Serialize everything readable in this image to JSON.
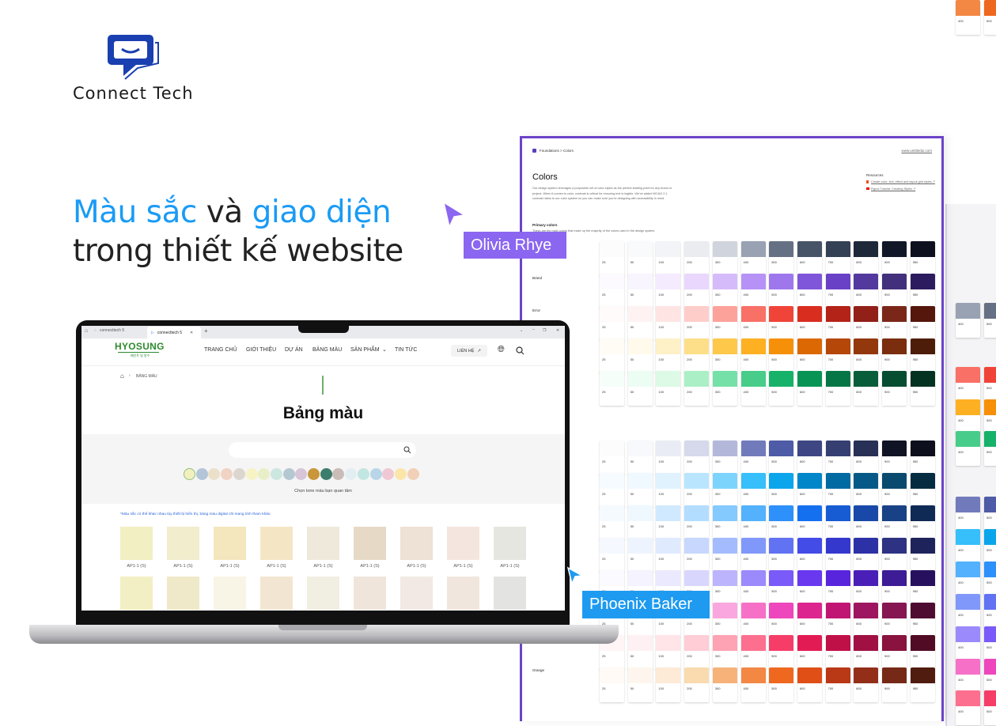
{
  "brand": {
    "name": "Connect Tech",
    "color": "#1a3fb0"
  },
  "headline": {
    "line1": [
      {
        "text": "Màu sắc",
        "accent": true
      },
      {
        "text": " và ",
        "accent": false
      },
      {
        "text": "giao diện",
        "accent": true
      }
    ],
    "line2": "trong thiết kế website",
    "accent_color": "#1a9bf5"
  },
  "cursors": [
    {
      "name": "Olivia Rhye",
      "color": "#8b66f0"
    },
    {
      "name": "Phoenix Baker",
      "color": "#1e9af0"
    }
  ],
  "browser": {
    "tabs": [
      {
        "label": "connecttech 5",
        "active": false
      },
      {
        "label": "connecttech 5",
        "active": true
      }
    ],
    "new_tab": "+"
  },
  "site": {
    "logo": "HYOSUNG",
    "logo_sub": "페인트 및 방수",
    "logo_color": "#2e8b2e",
    "nav": [
      "TRANG CHỦ",
      "GIỚI THIỆU",
      "DỰ ÁN",
      "BẢNG MÀU",
      "SẢN PHẨM",
      "TIN TỨC"
    ],
    "contact": "LIÊN HỆ",
    "breadcrumb": "BẢNG MÀU",
    "title": "Bảng màu",
    "search_placeholder": "",
    "tone_colors": [
      "#f3f0c0",
      "#b3c5d6",
      "#ebe1cb",
      "#f0d3c3",
      "#dbd6d0",
      "#f7f3c4",
      "#e8efc7",
      "#cce6e0",
      "#b4c8d1",
      "#d7c5d8",
      "#c9963b",
      "#3c7d6b",
      "#cabdb8",
      "#e3eef3",
      "#c2e6e2",
      "#b9d6e8",
      "#efc8d3",
      "#fce5a8",
      "#f2d0b8"
    ],
    "selected_tone": 0,
    "tone_hint": "Chọn tone màu bạn quan tâm",
    "note": "*Màu sắc có thể khác nhau tùy thiết bị hiển thị, bảng màu digital chỉ mang tính tham khảo",
    "swatches": [
      [
        {
          "code": "AP1-1 (S)",
          "color": "#f2efc3"
        },
        {
          "code": "AP1-1 (S)",
          "color": "#f1edcd"
        },
        {
          "code": "AP1-1 (S)",
          "color": "#f4e6bd"
        },
        {
          "code": "AP1-1 (S)",
          "color": "#f4e6c5"
        },
        {
          "code": "AP1-1 (S)",
          "color": "#efe9dc"
        },
        {
          "code": "AP1-1 (S)",
          "color": "#e6d9c6"
        },
        {
          "code": "AP1-1 (S)",
          "color": "#eee1d5"
        },
        {
          "code": "AP1-1 (S)",
          "color": "#f4e6de"
        },
        {
          "code": "AP1-1 (S)",
          "color": "#e6e6e1"
        }
      ],
      [
        {
          "color": "#f3efc4"
        },
        {
          "color": "#efe9c9"
        },
        {
          "color": "#f8f4e6"
        },
        {
          "color": "#f2e6d2"
        },
        {
          "color": "#f1eee2"
        },
        {
          "color": "#efe5db"
        },
        {
          "color": "#f2e9e4"
        },
        {
          "color": "#f1e6dd"
        },
        {
          "color": "#e3e3e1"
        }
      ]
    ]
  },
  "design_doc": {
    "breadcrumb": "Foundations > Colors",
    "url": "www.untitledui.com",
    "title": "Colors",
    "description": "Our design system leverages a purposeful set of color styles as the perfect starting point for any brand or project. When it comes to color, contrast is critical for ensuring text is legible. We've added WCAG 2.1 contrast ratios to our color system so you can make sure you're designing with accessibility in mind.",
    "resources_title": "Resources",
    "resources": [
      "Create color, text, effect and layout grid styles ↗",
      "Figma Tutorial: Creating Styles ↗"
    ],
    "primary_title": "Primary colors",
    "primary_desc": "These are the main colors that make up the majority of the colors used in the design system.",
    "section_labels": {
      "brand": "Brand",
      "error": "Error",
      "orange": "Orange"
    },
    "steps": [
      "25",
      "50",
      "100",
      "200",
      "300",
      "400",
      "500",
      "600",
      "700",
      "800",
      "900",
      "950"
    ],
    "primary_palettes": [
      [
        "#FCFCFD",
        "#F9FAFB",
        "#F2F4F7",
        "#EAECF0",
        "#D0D5DD",
        "#98A2B3",
        "#667085",
        "#475467",
        "#344054",
        "#1D2939",
        "#101828",
        "#0C111D"
      ],
      [
        "#FCFAFF",
        "#F9F5FF",
        "#F4EBFF",
        "#E9D7FE",
        "#D6BBFB",
        "#B692F6",
        "#9E77ED",
        "#7F56D9",
        "#6941C6",
        "#53389E",
        "#42307D",
        "#2C1C5F"
      ],
      [
        "#FFFBFA",
        "#FEF3F2",
        "#FEE4E2",
        "#FECDCA",
        "#FDA29B",
        "#F97066",
        "#F04438",
        "#D92D20",
        "#B42318",
        "#912018",
        "#7A271A",
        "#55160C"
      ],
      [
        "#FFFCF5",
        "#FFFAEB",
        "#FEF0C7",
        "#FEDF89",
        "#FEC84B",
        "#FDB022",
        "#F79009",
        "#DC6803",
        "#B54708",
        "#93370D",
        "#7A2E0E",
        "#4E1D09"
      ],
      [
        "#F6FEF9",
        "#ECFDF3",
        "#DCFAE6",
        "#ABEFC6",
        "#75E0A7",
        "#47CD89",
        "#17B26A",
        "#079455",
        "#067647",
        "#085D3A",
        "#074D31",
        "#053321"
      ]
    ],
    "secondary_palettes": [
      [
        "#FCFCFD",
        "#F8F9FC",
        "#EAECF5",
        "#D5D9EB",
        "#B3B8DB",
        "#717BBC",
        "#4E5BA6",
        "#3E4784",
        "#363F72",
        "#293056",
        "#101323",
        "#0D0F1C"
      ],
      [
        "#F5FBFF",
        "#F0F9FF",
        "#E0F2FE",
        "#B9E6FE",
        "#7CD4FD",
        "#36BFFA",
        "#0BA5EC",
        "#0086C9",
        "#026AA2",
        "#065986",
        "#0B4A6F",
        "#062C41"
      ],
      [
        "#F5FAFF",
        "#EFF8FF",
        "#D1E9FF",
        "#B2DDFF",
        "#84CAFF",
        "#53B1FD",
        "#2E90FA",
        "#1570EF",
        "#175CD3",
        "#1849A9",
        "#194185",
        "#102A56"
      ],
      [
        "#F5F8FF",
        "#EEF4FF",
        "#E0EAFF",
        "#C7D7FE",
        "#A4BCFD",
        "#8098F9",
        "#6172F3",
        "#444CE7",
        "#3538CD",
        "#2D31A6",
        "#2D3282",
        "#1F235B"
      ],
      [
        "#FAFAFF",
        "#F4F3FF",
        "#EBE9FE",
        "#D9D6FE",
        "#BDB4FE",
        "#9B8AFB",
        "#7A5AF8",
        "#6938EF",
        "#5925DC",
        "#4A1FB8",
        "#3E1C96",
        "#27115F"
      ],
      [
        "#FEF6FB",
        "#FDF2FA",
        "#FCE7F6",
        "#FCCEEE",
        "#FAA7E0",
        "#F670C7",
        "#EE46BC",
        "#DD2590",
        "#C11574",
        "#9E165F",
        "#851651",
        "#4E0D30"
      ],
      [
        "#FFF5F6",
        "#FFF1F3",
        "#FFE4E8",
        "#FECDD6",
        "#FEA3B4",
        "#FD6F8E",
        "#F63D68",
        "#E31B54",
        "#C01048",
        "#A11043",
        "#89123E",
        "#510B24"
      ],
      [
        "#FFFAF5",
        "#FEF6EE",
        "#FDEAD7",
        "#F9DBAF",
        "#F7B27A",
        "#F38744",
        "#EF6820",
        "#E04F16",
        "#B93815",
        "#932F19",
        "#772917",
        "#511C10"
      ]
    ],
    "frame_color": "#6c43c9"
  }
}
